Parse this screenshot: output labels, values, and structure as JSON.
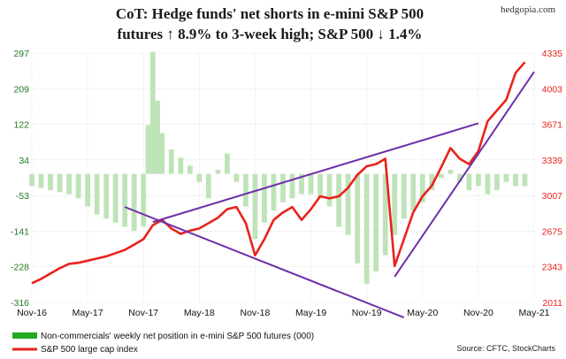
{
  "chart_data": {
    "type": "bar+line",
    "title_lines": [
      "CoT: Hedge funds' net shorts in e-mini S&P 500",
      "futures ↑ 8.9% to 3-week high; S&P 500 ↓ 1.4%"
    ],
    "brand": "hedgopia.com",
    "x_ticks": [
      "Nov-16",
      "May-17",
      "Nov-17",
      "May-18",
      "Nov-18",
      "May-19",
      "Nov-19",
      "May-20",
      "Nov-20",
      "May-21"
    ],
    "y_left_ticks": [
      "297",
      "209",
      "122",
      "34",
      "-53",
      "-141",
      "-228",
      "-316"
    ],
    "y_right_ticks": [
      "4335",
      "4003",
      "3671",
      "3339",
      "3007",
      "2675",
      "2343",
      "2011"
    ],
    "ylim_left": [
      -316,
      297
    ],
    "ylim_right": [
      2011,
      4335
    ],
    "x_range_months": [
      0,
      54
    ],
    "grid": true,
    "legend_placement": "bottom-left",
    "colors": {
      "bars": "#bfe3b8",
      "line": "#e8231c",
      "trendline": "#6e2fa8",
      "left_axis": "#1f7a1f",
      "right_axis": "#e8231c",
      "grid": "#cccccc"
    },
    "series": [
      {
        "name": "Non-commercials' weekly net position in e-mini S&P 500 futures (000)",
        "kind": "bar",
        "axis": "left",
        "points": [
          [
            0,
            -30
          ],
          [
            1,
            -35
          ],
          [
            2,
            -40
          ],
          [
            3,
            -45
          ],
          [
            4,
            -50
          ],
          [
            5,
            -60
          ],
          [
            6,
            -80
          ],
          [
            7,
            -100
          ],
          [
            8,
            -110
          ],
          [
            9,
            -120
          ],
          [
            10,
            -130
          ],
          [
            11,
            -140
          ],
          [
            12,
            -130
          ],
          [
            12.5,
            120
          ],
          [
            13,
            300
          ],
          [
            13.5,
            180
          ],
          [
            14,
            100
          ],
          [
            15,
            60
          ],
          [
            16,
            40
          ],
          [
            17,
            20
          ],
          [
            18,
            -20
          ],
          [
            19,
            -60
          ],
          [
            20,
            10
          ],
          [
            21,
            50
          ],
          [
            22,
            -20
          ],
          [
            23,
            -80
          ],
          [
            24,
            -160
          ],
          [
            25,
            -120
          ],
          [
            26,
            -90
          ],
          [
            27,
            -70
          ],
          [
            28,
            -60
          ],
          [
            29,
            -50
          ],
          [
            30,
            -50
          ],
          [
            31,
            -60
          ],
          [
            32,
            -80
          ],
          [
            33,
            -130
          ],
          [
            34,
            -150
          ],
          [
            35,
            -220
          ],
          [
            36,
            -270
          ],
          [
            37,
            -240
          ],
          [
            38,
            -200
          ],
          [
            39,
            -150
          ],
          [
            40,
            -110
          ],
          [
            41,
            -90
          ],
          [
            42,
            -70
          ],
          [
            43,
            -40
          ],
          [
            44,
            -10
          ],
          [
            45,
            10
          ],
          [
            46,
            -20
          ],
          [
            47,
            -40
          ],
          [
            48,
            -30
          ],
          [
            49,
            -50
          ],
          [
            50,
            -40
          ],
          [
            51,
            -20
          ],
          [
            52,
            -30
          ],
          [
            53,
            -30
          ]
        ]
      },
      {
        "name": "S&P 500 large cap index",
        "kind": "line",
        "axis": "right",
        "points": [
          [
            0,
            2190
          ],
          [
            1,
            2230
          ],
          [
            2,
            2280
          ],
          [
            3,
            2330
          ],
          [
            4,
            2370
          ],
          [
            5,
            2380
          ],
          [
            6,
            2400
          ],
          [
            7,
            2420
          ],
          [
            8,
            2440
          ],
          [
            9,
            2470
          ],
          [
            10,
            2500
          ],
          [
            11,
            2550
          ],
          [
            12,
            2600
          ],
          [
            13,
            2730
          ],
          [
            14,
            2780
          ],
          [
            15,
            2700
          ],
          [
            16,
            2650
          ],
          [
            17,
            2680
          ],
          [
            18,
            2700
          ],
          [
            19,
            2750
          ],
          [
            20,
            2800
          ],
          [
            21,
            2880
          ],
          [
            22,
            2900
          ],
          [
            23,
            2750
          ],
          [
            24,
            2450
          ],
          [
            25,
            2600
          ],
          [
            26,
            2780
          ],
          [
            27,
            2850
          ],
          [
            28,
            2900
          ],
          [
            29,
            2780
          ],
          [
            30,
            2880
          ],
          [
            31,
            3000
          ],
          [
            32,
            2980
          ],
          [
            33,
            3000
          ],
          [
            34,
            3080
          ],
          [
            35,
            3200
          ],
          [
            36,
            3280
          ],
          [
            37,
            3300
          ],
          [
            38,
            3350
          ],
          [
            39,
            2350
          ],
          [
            40,
            2600
          ],
          [
            41,
            2850
          ],
          [
            42,
            3000
          ],
          [
            43,
            3100
          ],
          [
            44,
            3270
          ],
          [
            45,
            3450
          ],
          [
            46,
            3350
          ],
          [
            47,
            3300
          ],
          [
            48,
            3420
          ],
          [
            49,
            3700
          ],
          [
            50,
            3800
          ],
          [
            51,
            3900
          ],
          [
            52,
            4150
          ],
          [
            53,
            4250
          ]
        ]
      }
    ],
    "trendlines": [
      {
        "from": [
          13,
          2760
        ],
        "to": [
          48,
          3680
        ]
      },
      {
        "from": [
          10,
          2900
        ],
        "to": [
          40,
          1870
        ]
      },
      {
        "from": [
          39,
          2250
        ],
        "to": [
          54,
          4160
        ]
      }
    ],
    "legend": [
      "Non-commercials' weekly net position in e-mini S&P 500 futures (000)",
      "S&P 500 large cap index"
    ],
    "source": "Source: CFTC, StockCharts"
  }
}
